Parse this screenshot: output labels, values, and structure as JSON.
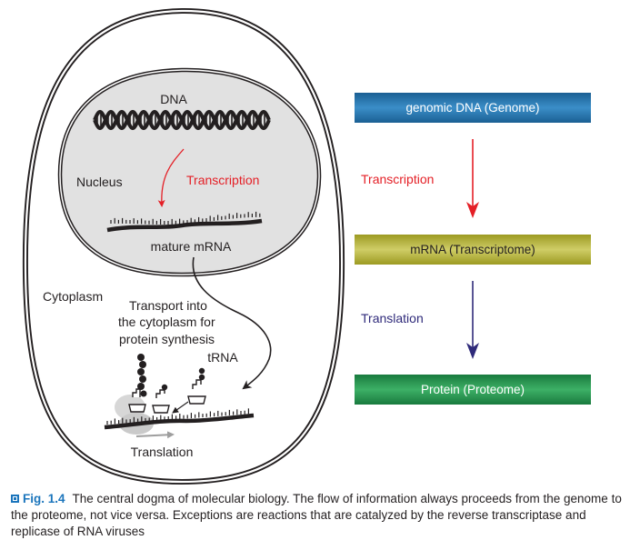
{
  "diagram": {
    "dna_label": "DNA",
    "nucleus_label": "Nucleus",
    "transcription_label": "Transcription",
    "mature_mrna_label": "mature mRNA",
    "cytoplasm_label": "Cytoplasm",
    "transport_text": [
      "Transport into",
      "the cytoplasm for",
      "protein synthesis"
    ],
    "trna_label": "tRNA",
    "translation_label": "Translation"
  },
  "flow": {
    "boxes": [
      {
        "label": "genomic DNA (Genome)",
        "color": "#1d6fa5"
      },
      {
        "label": "mRNA (Transcriptome)",
        "color": "#b3b13a"
      },
      {
        "label": "Protein (Proteome)",
        "color": "#23924c"
      }
    ],
    "arrows": [
      {
        "label": "Transcription",
        "color": "#e41f26"
      },
      {
        "label": "Translation",
        "color": "#2f2a7a"
      }
    ]
  },
  "caption": {
    "number": "Fig. 1.4",
    "text": "The central dogma of molecular biology. The flow of information always proceeds from the genome to the proteome, not vice versa. Exceptions are reactions that are catalyzed by the reverse transcriptase and replicase of RNA viruses"
  }
}
